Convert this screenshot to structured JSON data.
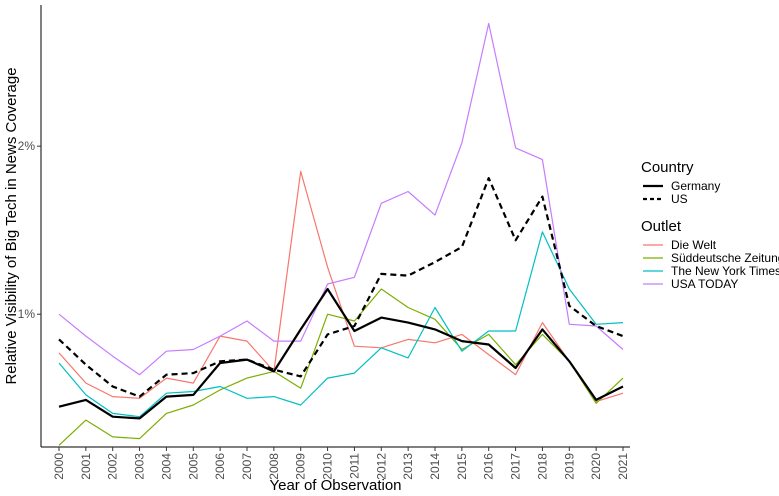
{
  "chart_data": {
    "type": "line",
    "title": "",
    "xlabel": "Year of Observation",
    "ylabel": "Relative Visibility of Big Tech in News Coverage",
    "x": [
      2000,
      2001,
      2002,
      2003,
      2004,
      2005,
      2006,
      2007,
      2008,
      2009,
      2010,
      2011,
      2012,
      2013,
      2014,
      2015,
      2016,
      2017,
      2018,
      2019,
      2020,
      2021
    ],
    "x_tick_labels": [
      "2000",
      "2001",
      "2002",
      "2003",
      "2004",
      "2005",
      "2006",
      "2007",
      "2008",
      "2009",
      "2010",
      "2011",
      "2012",
      "2013",
      "2014",
      "2015",
      "2016",
      "2017",
      "2018",
      "2019",
      "2020",
      "2021"
    ],
    "y_tick_values": [
      0.01,
      0.02
    ],
    "y_tick_labels": [
      "1%",
      "2%"
    ],
    "ylim": [
      0.0021,
      0.0284
    ],
    "grid": false,
    "legend_position": "right",
    "legends": [
      {
        "title": "Country",
        "entries": [
          {
            "name": "Germany",
            "color": "#000000",
            "dash": "solid"
          },
          {
            "name": "US",
            "color": "#000000",
            "dash": "dashed"
          }
        ]
      },
      {
        "title": "Outlet",
        "entries": [
          {
            "name": "Die Welt",
            "color": "#F8766D",
            "dash": "solid"
          },
          {
            "name": "Süddeutsche Zeitung",
            "color": "#7CAE00",
            "dash": "solid"
          },
          {
            "name": "The New York Times",
            "color": "#00BFC4",
            "dash": "solid"
          },
          {
            "name": "USA TODAY",
            "color": "#C77CFF",
            "dash": "solid"
          }
        ]
      }
    ],
    "series": [
      {
        "name": "Die Welt",
        "group": "Outlet",
        "color": "#F8766D",
        "dash": "solid",
        "values": [
          0.0077,
          0.0059,
          0.0051,
          0.005,
          0.0062,
          0.0059,
          0.0087,
          0.0084,
          0.0066,
          0.0185,
          0.0128,
          0.0081,
          0.008,
          0.0085,
          0.0083,
          0.0088,
          0.0076,
          0.0064,
          0.0095,
          0.0072,
          0.0048,
          0.0053
        ]
      },
      {
        "name": "Süddeutsche Zeitung",
        "group": "Outlet",
        "color": "#7CAE00",
        "dash": "solid",
        "values": [
          0.0022,
          0.0037,
          0.0027,
          0.0026,
          0.0041,
          0.0046,
          0.0055,
          0.0062,
          0.0066,
          0.0056,
          0.01,
          0.0096,
          0.0115,
          0.0104,
          0.0097,
          0.0079,
          0.0088,
          0.007,
          0.0088,
          0.0072,
          0.0047,
          0.0062
        ]
      },
      {
        "name": "The New York Times",
        "group": "Outlet",
        "color": "#00BFC4",
        "dash": "solid",
        "values": [
          0.0071,
          0.0052,
          0.0041,
          0.0039,
          0.0053,
          0.0054,
          0.0057,
          0.005,
          0.0051,
          0.0046,
          0.0062,
          0.0065,
          0.008,
          0.0074,
          0.0104,
          0.0078,
          0.009,
          0.009,
          0.0149,
          0.0115,
          0.0094,
          0.0095
        ]
      },
      {
        "name": "USA TODAY",
        "group": "Outlet",
        "color": "#C77CFF",
        "dash": "solid",
        "values": [
          0.01,
          0.0087,
          0.0075,
          0.0064,
          0.0078,
          0.0079,
          0.0087,
          0.0096,
          0.0084,
          0.0084,
          0.0118,
          0.0122,
          0.0166,
          0.0173,
          0.0159,
          0.0202,
          0.0273,
          0.0199,
          0.0192,
          0.0094,
          0.0093,
          0.0079
        ]
      },
      {
        "name": "Germany",
        "group": "Country",
        "color": "#000000",
        "dash": "solid",
        "values": [
          0.0045,
          0.0049,
          0.0039,
          0.0038,
          0.0051,
          0.0052,
          0.0071,
          0.0073,
          0.0066,
          0.0091,
          0.0115,
          0.009,
          0.0098,
          0.0095,
          0.0091,
          0.0084,
          0.0082,
          0.0068,
          0.0091,
          0.0072,
          0.0049,
          0.0057
        ]
      },
      {
        "name": "US",
        "group": "Country",
        "color": "#000000",
        "dash": "dashed",
        "values": [
          0.0085,
          0.007,
          0.0057,
          0.0051,
          0.0064,
          0.0065,
          0.0072,
          0.0073,
          0.0067,
          0.0063,
          0.0088,
          0.0093,
          0.0124,
          0.0123,
          0.0131,
          0.014,
          0.0181,
          0.0144,
          0.017,
          0.0105,
          0.0093,
          0.0087
        ]
      }
    ]
  }
}
